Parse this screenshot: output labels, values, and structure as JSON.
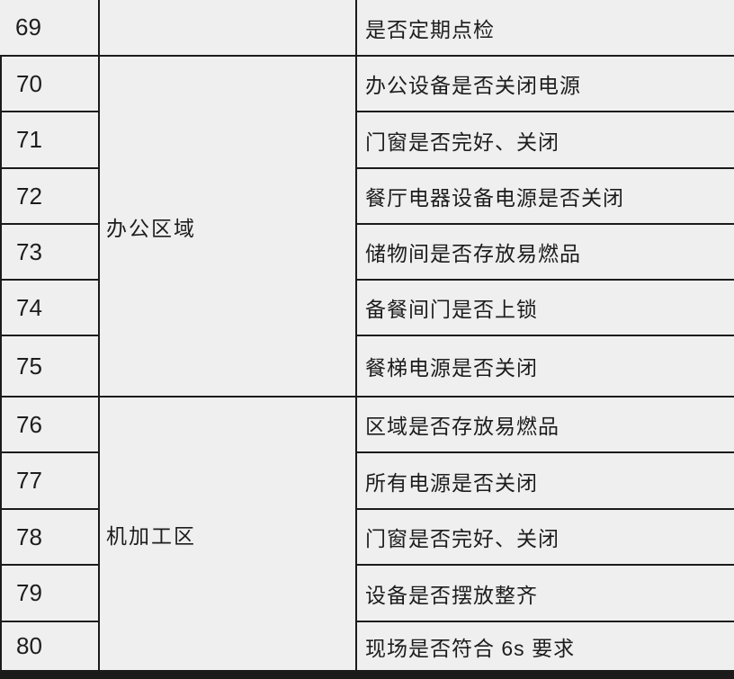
{
  "page": {
    "background_color": "#efeff0",
    "border_color": "#1b1b1b",
    "text_color": "#1d1d1d"
  },
  "table": {
    "description": "inspection-checklist-table-rows-69-80",
    "areas": [
      {
        "label": "办公区域",
        "row_span_nums": "70-75"
      },
      {
        "label": "机加工区",
        "row_span_nums": "76-80"
      }
    ],
    "rows": [
      {
        "num": "69",
        "item": "是否定期点检"
      },
      {
        "num": "70",
        "item": "办公设备是否关闭电源"
      },
      {
        "num": "71",
        "item": "门窗是否完好、关闭"
      },
      {
        "num": "72",
        "item": "餐厅电器设备电源是否关闭"
      },
      {
        "num": "73",
        "item": "储物间是否存放易燃品"
      },
      {
        "num": "74",
        "item": "备餐间门是否上锁"
      },
      {
        "num": "75",
        "item": "餐梯电源是否关闭"
      },
      {
        "num": "76",
        "item": "区域是否存放易燃品"
      },
      {
        "num": "77",
        "item": "所有电源是否关闭"
      },
      {
        "num": "78",
        "item": "门窗是否完好、关闭"
      },
      {
        "num": "79",
        "item": "设备是否摆放整齐"
      },
      {
        "num": "80",
        "item": "现场是否符合 6s 要求"
      }
    ]
  }
}
